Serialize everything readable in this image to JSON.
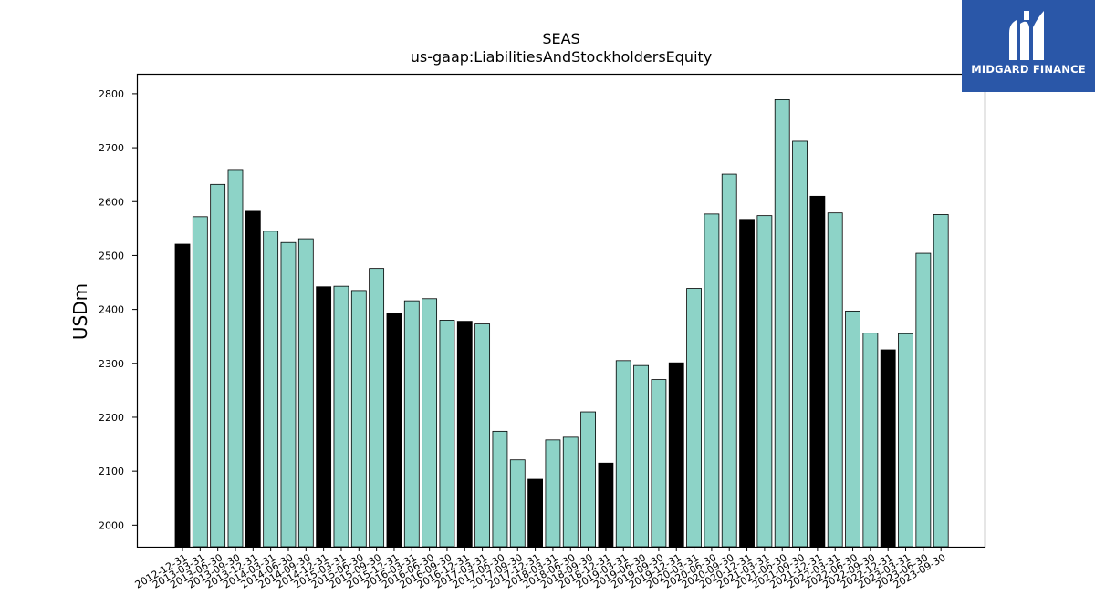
{
  "chart_data": {
    "type": "bar",
    "title": "SEAS",
    "subtitle": "us-gaap:LiabilitiesAndStockholdersEquity",
    "xlabel": "",
    "ylabel": "USDm",
    "ylim": [
      1960,
      2837
    ],
    "yticks": [
      2000,
      2100,
      2200,
      2300,
      2400,
      2500,
      2600,
      2700,
      2800
    ],
    "grid": false,
    "colors": {
      "quarter": "#8dd3c7",
      "year_end": "#000000",
      "edge": "#000000"
    },
    "categories": [
      "2012-12-31",
      "2013-03-31",
      "2013-06-30",
      "2013-09-30",
      "2013-12-31",
      "2014-03-31",
      "2014-06-30",
      "2014-09-30",
      "2014-12-31",
      "2015-03-31",
      "2015-06-30",
      "2015-09-30",
      "2015-12-31",
      "2016-03-31",
      "2016-06-30",
      "2016-09-30",
      "2016-12-31",
      "2017-03-31",
      "2017-06-30",
      "2017-09-30",
      "2017-12-31",
      "2018-03-31",
      "2018-06-30",
      "2018-09-30",
      "2018-12-31",
      "2019-03-31",
      "2019-06-30",
      "2019-09-30",
      "2019-12-31",
      "2020-03-31",
      "2020-06-30",
      "2020-09-30",
      "2020-12-31",
      "2021-03-31",
      "2021-06-30",
      "2021-09-30",
      "2021-12-31",
      "2022-03-31",
      "2022-06-30",
      "2022-09-30",
      "2022-12-31",
      "2023-03-31",
      "2023-06-30",
      "2023-09-30"
    ],
    "values": [
      2521,
      2572,
      2632,
      2658,
      2582,
      2545,
      2524,
      2531,
      2442,
      2443,
      2435,
      2476,
      2392,
      2416,
      2420,
      2380,
      2378,
      2373,
      2174,
      2121,
      2085,
      2158,
      2163,
      2210,
      2115,
      2305,
      2296,
      2270,
      2301,
      2439,
      2577,
      2651,
      2567,
      2574,
      2789,
      2712,
      2610,
      2579,
      2397,
      2356,
      2325,
      2355,
      2504,
      2576
    ],
    "year_end": [
      true,
      false,
      false,
      false,
      true,
      false,
      false,
      false,
      true,
      false,
      false,
      false,
      true,
      false,
      false,
      false,
      true,
      false,
      false,
      false,
      true,
      false,
      false,
      false,
      true,
      false,
      false,
      false,
      true,
      false,
      false,
      false,
      true,
      false,
      false,
      false,
      true,
      false,
      false,
      false,
      true,
      false,
      false,
      false
    ]
  },
  "logo": {
    "text": "MIDGARD FINANCE",
    "color": "#2a57a8"
  }
}
